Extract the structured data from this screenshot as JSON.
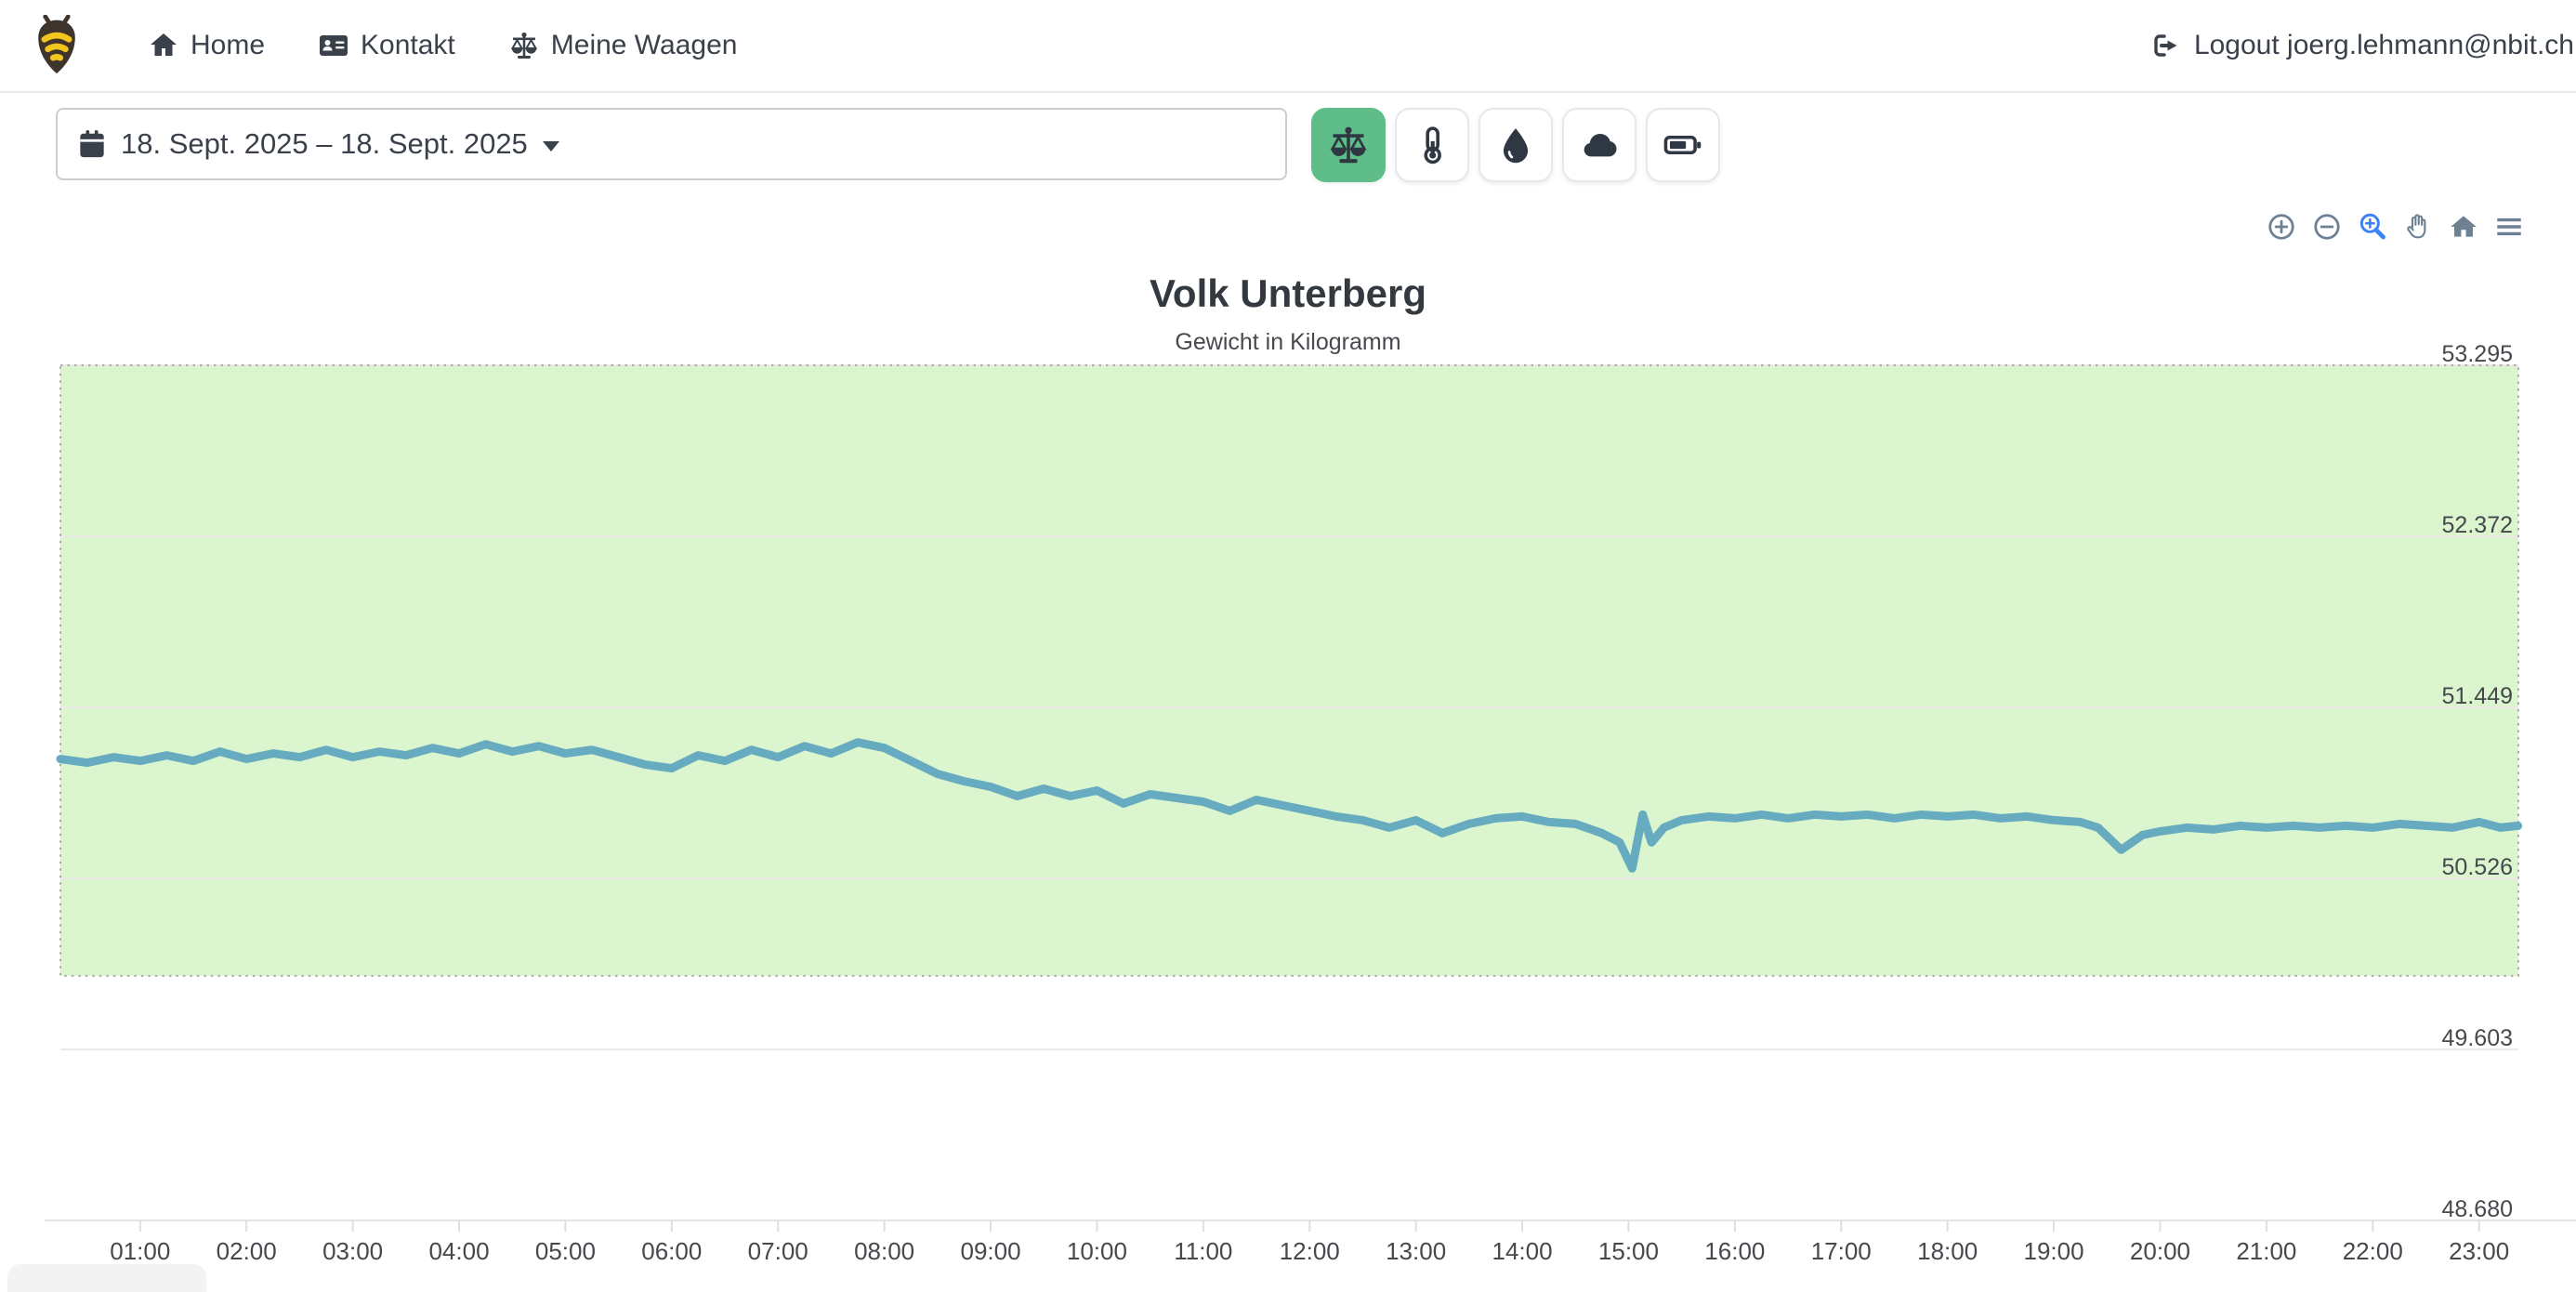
{
  "navbar": {
    "logo": "bee-logo",
    "items": [
      {
        "label": "Home",
        "icon": "home-icon"
      },
      {
        "label": "Kontakt",
        "icon": "address-card-icon"
      },
      {
        "label": "Meine Waagen",
        "icon": "balance-scale-icon"
      }
    ],
    "logout_label": "Logout joerg.lehmann@nbit.ch",
    "logout_icon": "sign-out-icon"
  },
  "controls": {
    "date_range": "18. Sept. 2025 – 18. Sept. 2025",
    "date_icon": "calendar-icon",
    "metric_buttons": [
      {
        "name": "weight",
        "icon": "balance-scale-icon",
        "active": true
      },
      {
        "name": "temperature",
        "icon": "thermometer-icon",
        "active": false
      },
      {
        "name": "humidity",
        "icon": "droplet-icon",
        "active": false
      },
      {
        "name": "weather",
        "icon": "cloud-icon",
        "active": false
      },
      {
        "name": "battery",
        "icon": "battery-icon",
        "active": false
      }
    ],
    "active_color": "#5ebd88"
  },
  "chart_toolbar": {
    "icons": [
      "zoom-in",
      "zoom-out",
      "selection-zoom",
      "pan",
      "reset-home",
      "menu"
    ],
    "active": "selection-zoom",
    "icon_color": "#6e8192",
    "active_color": "#3b82f6"
  },
  "chart_data": {
    "type": "line",
    "title": "Volk Unterberg",
    "subtitle": "Gewicht in Kilogramm",
    "grid": "horizontal",
    "legend": "none",
    "y_axis_side": "right",
    "y_range": [
      48.68,
      53.295
    ],
    "x_range_hours": [
      0.25,
      23.37
    ],
    "y_ticks": [
      {
        "value": 53.295,
        "label": "53.295"
      },
      {
        "value": 52.372,
        "label": "52.372"
      },
      {
        "value": 51.449,
        "label": "51.449"
      },
      {
        "value": 50.526,
        "label": "50.526"
      },
      {
        "value": 49.603,
        "label": "49.603"
      },
      {
        "value": 48.68,
        "label": "48.680"
      }
    ],
    "x_ticks": [
      "01:00",
      "02:00",
      "03:00",
      "04:00",
      "05:00",
      "06:00",
      "07:00",
      "08:00",
      "09:00",
      "10:00",
      "11:00",
      "12:00",
      "13:00",
      "14:00",
      "15:00",
      "16:00",
      "17:00",
      "18:00",
      "19:00",
      "20:00",
      "21:00",
      "22:00",
      "23:00"
    ],
    "annotation_band": {
      "from": 50.0,
      "to": 53.295,
      "fill": "#dbf5ce",
      "border_color": "#ababab",
      "border_style": "dotted"
    },
    "colors": {
      "gridline": "#eaeaea",
      "axis_line": "#e4e4e4",
      "tick": "#dedede",
      "label": "#45494d"
    },
    "series": [
      {
        "name": "Gewicht",
        "unit": "kg",
        "color": "#66abbf",
        "stroke_width": 9,
        "points": [
          [
            15,
            51.17
          ],
          [
            30,
            51.15
          ],
          [
            45,
            51.18
          ],
          [
            60,
            51.16
          ],
          [
            75,
            51.19
          ],
          [
            90,
            51.16
          ],
          [
            105,
            51.21
          ],
          [
            120,
            51.17
          ],
          [
            135,
            51.2
          ],
          [
            150,
            51.18
          ],
          [
            165,
            51.22
          ],
          [
            180,
            51.18
          ],
          [
            195,
            51.21
          ],
          [
            210,
            51.19
          ],
          [
            225,
            51.23
          ],
          [
            240,
            51.2
          ],
          [
            255,
            51.25
          ],
          [
            270,
            51.21
          ],
          [
            285,
            51.24
          ],
          [
            300,
            51.2
          ],
          [
            315,
            51.22
          ],
          [
            330,
            51.18
          ],
          [
            345,
            51.14
          ],
          [
            360,
            51.12
          ],
          [
            375,
            51.19
          ],
          [
            390,
            51.16
          ],
          [
            405,
            51.22
          ],
          [
            420,
            51.18
          ],
          [
            435,
            51.24
          ],
          [
            450,
            51.2
          ],
          [
            465,
            51.26
          ],
          [
            480,
            51.23
          ],
          [
            495,
            51.16
          ],
          [
            510,
            51.09
          ],
          [
            525,
            51.05
          ],
          [
            540,
            51.02
          ],
          [
            555,
            50.97
          ],
          [
            570,
            51.01
          ],
          [
            585,
            50.97
          ],
          [
            600,
            51.0
          ],
          [
            615,
            50.93
          ],
          [
            630,
            50.98
          ],
          [
            645,
            50.96
          ],
          [
            660,
            50.94
          ],
          [
            675,
            50.89
          ],
          [
            690,
            50.95
          ],
          [
            705,
            50.92
          ],
          [
            720,
            50.89
          ],
          [
            735,
            50.86
          ],
          [
            750,
            50.84
          ],
          [
            765,
            50.8
          ],
          [
            780,
            50.84
          ],
          [
            795,
            50.77
          ],
          [
            810,
            50.82
          ],
          [
            825,
            50.85
          ],
          [
            840,
            50.86
          ],
          [
            855,
            50.83
          ],
          [
            870,
            50.82
          ],
          [
            885,
            50.77
          ],
          [
            895,
            50.72
          ],
          [
            902,
            50.58
          ],
          [
            908,
            50.87
          ],
          [
            913,
            50.72
          ],
          [
            920,
            50.8
          ],
          [
            930,
            50.84
          ],
          [
            945,
            50.86
          ],
          [
            960,
            50.85
          ],
          [
            975,
            50.87
          ],
          [
            990,
            50.85
          ],
          [
            1005,
            50.87
          ],
          [
            1020,
            50.86
          ],
          [
            1035,
            50.87
          ],
          [
            1050,
            50.85
          ],
          [
            1065,
            50.87
          ],
          [
            1080,
            50.86
          ],
          [
            1095,
            50.87
          ],
          [
            1110,
            50.85
          ],
          [
            1125,
            50.86
          ],
          [
            1140,
            50.84
          ],
          [
            1155,
            50.83
          ],
          [
            1165,
            50.8
          ],
          [
            1178,
            50.68
          ],
          [
            1190,
            50.76
          ],
          [
            1200,
            50.78
          ],
          [
            1215,
            50.8
          ],
          [
            1230,
            50.79
          ],
          [
            1245,
            50.81
          ],
          [
            1260,
            50.8
          ],
          [
            1275,
            50.81
          ],
          [
            1290,
            50.8
          ],
          [
            1305,
            50.81
          ],
          [
            1320,
            50.8
          ],
          [
            1335,
            50.82
          ],
          [
            1350,
            50.81
          ],
          [
            1365,
            50.8
          ],
          [
            1380,
            50.83
          ],
          [
            1392,
            50.8
          ],
          [
            1402,
            50.81
          ]
        ]
      }
    ]
  }
}
